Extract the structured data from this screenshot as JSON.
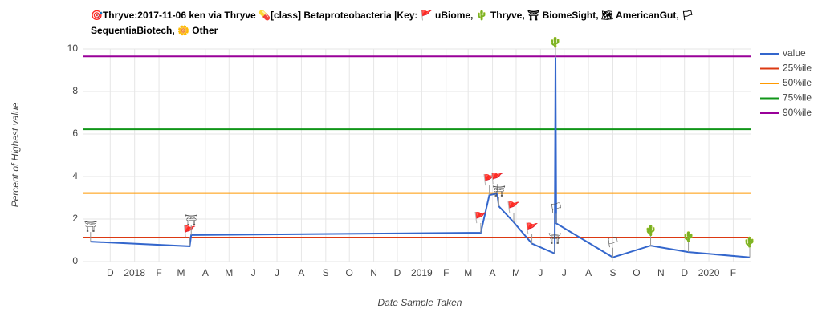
{
  "chart_data": {
    "type": "line",
    "title": "🎯Thryve:2017-11-06 ken via Thryve 💊[class] Betaproteobacteria |Key: 🚩 uBiome, 🌵 Thryve, ⛩ BiomeSight, 🗺 AmericanGut, 🏳 SequentiaBiotech, 🌼 Other",
    "x_label": "Date Sample Taken",
    "y_label": "Percent of Highest value",
    "x": [
      "2017-11-06",
      "2018-03-12",
      "2018-03-14",
      "2019-03-17",
      "2019-03-28",
      "2019-04-07",
      "2019-04-09",
      "2019-04-28",
      "2019-05-21",
      "2019-06-19",
      "2019-06-20",
      "2019-06-21",
      "2019-09-01",
      "2019-10-19",
      "2019-12-06",
      "2020-02-22"
    ],
    "series": [
      {
        "name": "value",
        "color": "#3366cc",
        "values": [
          0.94,
          0.72,
          1.25,
          1.36,
          3.13,
          3.2,
          2.6,
          1.85,
          0.85,
          0.38,
          9.6,
          1.8,
          0.2,
          0.75,
          0.45,
          0.2
        ],
        "annotations": [
          "⛩",
          "🚩",
          "⛩",
          "🚩",
          "🚩",
          "🚩",
          "⛩",
          "🚩",
          "🚩",
          "⛩",
          "🌵",
          "🏳",
          "🏳",
          "🌵",
          "🌵",
          "🌵"
        ]
      }
    ],
    "reference_lines": [
      {
        "name": "25%ile",
        "color": "#dc3912",
        "value": 1.13
      },
      {
        "name": "50%ile",
        "color": "#ff9900",
        "value": 3.22
      },
      {
        "name": "75%ile",
        "color": "#109618",
        "value": 6.22
      },
      {
        "name": "90%ile",
        "color": "#990099",
        "value": 9.65
      }
    ],
    "xlim": [
      "2017-10-27",
      "2020-02-23"
    ],
    "xticks": [
      {
        "value": "2017-12-01",
        "label": "D"
      },
      {
        "value": "2018-01-01",
        "label": "2018"
      },
      {
        "value": "2018-02-01",
        "label": "F"
      },
      {
        "value": "2018-03-01",
        "label": "M"
      },
      {
        "value": "2018-04-01",
        "label": "A"
      },
      {
        "value": "2018-05-01",
        "label": "M"
      },
      {
        "value": "2018-06-01",
        "label": "J"
      },
      {
        "value": "2018-07-01",
        "label": "J"
      },
      {
        "value": "2018-08-01",
        "label": "A"
      },
      {
        "value": "2018-09-01",
        "label": "S"
      },
      {
        "value": "2018-10-01",
        "label": "O"
      },
      {
        "value": "2018-11-01",
        "label": "N"
      },
      {
        "value": "2018-12-01",
        "label": "D"
      },
      {
        "value": "2019-01-01",
        "label": "2019"
      },
      {
        "value": "2019-02-01",
        "label": "F"
      },
      {
        "value": "2019-03-01",
        "label": "M"
      },
      {
        "value": "2019-04-01",
        "label": "A"
      },
      {
        "value": "2019-05-01",
        "label": "M"
      },
      {
        "value": "2019-06-01",
        "label": "J"
      },
      {
        "value": "2019-07-01",
        "label": "J"
      },
      {
        "value": "2019-08-01",
        "label": "A"
      },
      {
        "value": "2019-09-01",
        "label": "S"
      },
      {
        "value": "2019-10-01",
        "label": "O"
      },
      {
        "value": "2019-11-01",
        "label": "N"
      },
      {
        "value": "2019-12-01",
        "label": "D"
      },
      {
        "value": "2020-01-01",
        "label": "2020"
      },
      {
        "value": "2020-02-01",
        "label": "F"
      }
    ],
    "ylim": [
      0,
      10
    ],
    "yticks": [
      0,
      2,
      4,
      6,
      8,
      10
    ],
    "grid": true,
    "legend": "right"
  }
}
